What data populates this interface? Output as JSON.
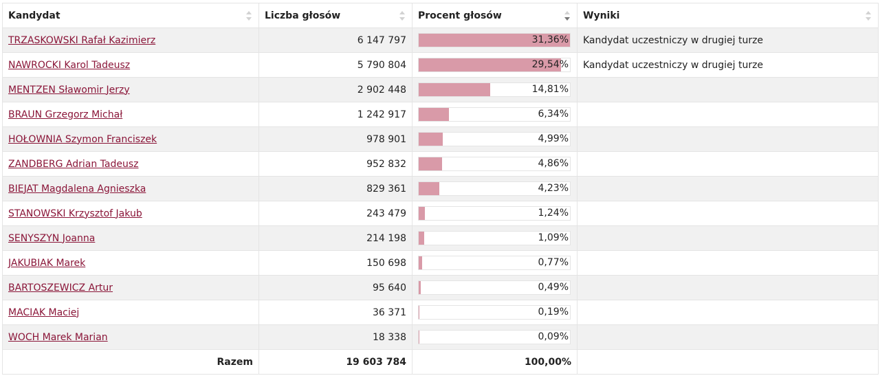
{
  "table": {
    "headers": {
      "candidate": "Kandydat",
      "votes": "Liczba głosów",
      "percent": "Procent głosów",
      "results": "Wyniki"
    },
    "sort": {
      "column": "percent",
      "direction": "descending"
    },
    "bar_color": "#d99aa8",
    "link_color": "#8a1538",
    "rows": [
      {
        "name": "TRZASKOWSKI Rafał Kazimierz",
        "votes": "6 147 797",
        "percent": "31,36%",
        "percent_value": 31.36,
        "result": "Kandydat uczestniczy w drugiej turze"
      },
      {
        "name": "NAWROCKI Karol Tadeusz",
        "votes": "5 790 804",
        "percent": "29,54%",
        "percent_value": 29.54,
        "result": "Kandydat uczestniczy w drugiej turze"
      },
      {
        "name": "MENTZEN Sławomir Jerzy",
        "votes": "2 902 448",
        "percent": "14,81%",
        "percent_value": 14.81,
        "result": ""
      },
      {
        "name": "BRAUN Grzegorz Michał",
        "votes": "1 242 917",
        "percent": "6,34%",
        "percent_value": 6.34,
        "result": ""
      },
      {
        "name": "HOŁOWNIA Szymon Franciszek",
        "votes": "978 901",
        "percent": "4,99%",
        "percent_value": 4.99,
        "result": ""
      },
      {
        "name": "ZANDBERG Adrian Tadeusz",
        "votes": "952 832",
        "percent": "4,86%",
        "percent_value": 4.86,
        "result": ""
      },
      {
        "name": "BIEJAT Magdalena Agnieszka",
        "votes": "829 361",
        "percent": "4,23%",
        "percent_value": 4.23,
        "result": ""
      },
      {
        "name": "STANOWSKI Krzysztof Jakub",
        "votes": "243 479",
        "percent": "1,24%",
        "percent_value": 1.24,
        "result": ""
      },
      {
        "name": "SENYSZYN Joanna",
        "votes": "214 198",
        "percent": "1,09%",
        "percent_value": 1.09,
        "result": ""
      },
      {
        "name": "JAKUBIAK Marek",
        "votes": "150 698",
        "percent": "0,77%",
        "percent_value": 0.77,
        "result": ""
      },
      {
        "name": "BARTOSZEWICZ Artur",
        "votes": "95 640",
        "percent": "0,49%",
        "percent_value": 0.49,
        "result": ""
      },
      {
        "name": "MACIAK Maciej",
        "votes": "36 371",
        "percent": "0,19%",
        "percent_value": 0.19,
        "result": ""
      },
      {
        "name": "WOCH Marek Marian",
        "votes": "18 338",
        "percent": "0,09%",
        "percent_value": 0.09,
        "result": ""
      }
    ],
    "total": {
      "label": "Razem",
      "votes": "19 603 784",
      "percent": "100,00%"
    }
  }
}
